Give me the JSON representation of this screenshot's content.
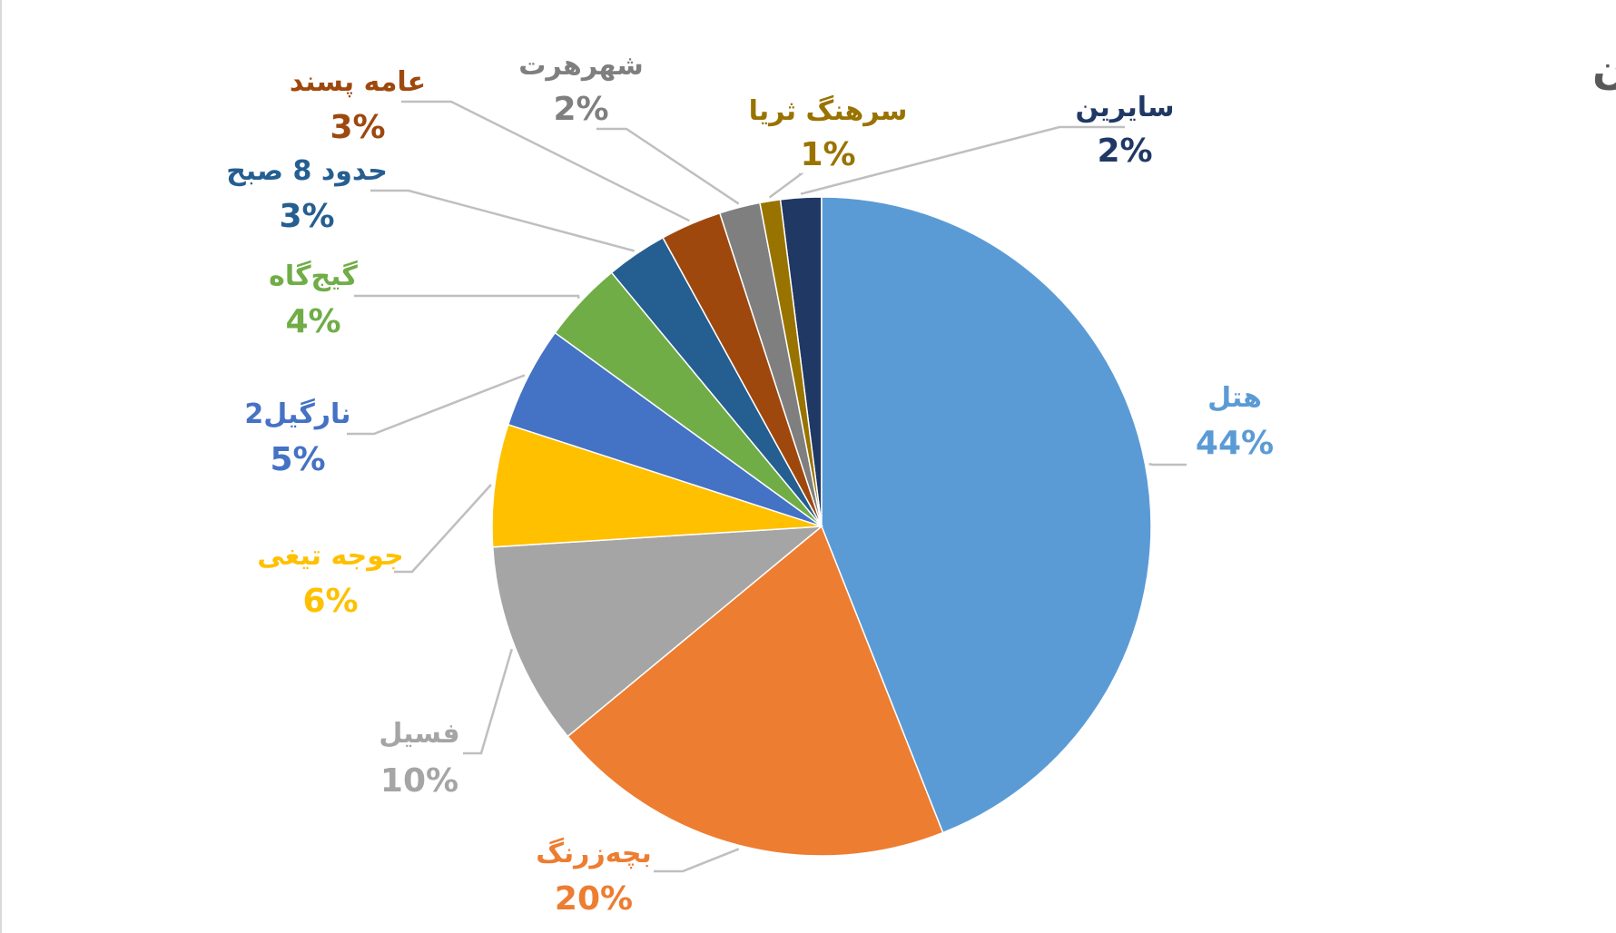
{
  "chart_data": {
    "type": "pie",
    "title": "سهم مخاطبان",
    "slices": [
      {
        "label": "سایرین",
        "value": 2,
        "value_label": "2%",
        "color": "#203864"
      },
      {
        "label": "هتل",
        "value": 44,
        "value_label": "44%",
        "color": "#5b9bd5"
      },
      {
        "label": "بچه‌زرنگ",
        "value": 20,
        "value_label": "20%",
        "color": "#ed7d31"
      },
      {
        "label": "فسیل",
        "value": 10,
        "value_label": "10%",
        "color": "#a5a5a5"
      },
      {
        "label": "جوجه تیغی",
        "value": 6,
        "value_label": "6%",
        "color": "#ffc000"
      },
      {
        "label": "نارگیل2",
        "value": 5,
        "value_label": "5%",
        "color": "#4472c4"
      },
      {
        "label": "گیج‌گاه",
        "value": 4,
        "value_label": "4%",
        "color": "#70ad47"
      },
      {
        "label": "حدود 8 صبح",
        "value": 3,
        "value_label": "3%",
        "color": "#255e91"
      },
      {
        "label": "عامه پسند",
        "value": 3,
        "value_label": "3%",
        "color": "#9e480e"
      },
      {
        "label": "شهرهرت",
        "value": 2,
        "value_label": "2%",
        "color": "#7f7f7f"
      },
      {
        "label": "سرهنگ ثریا",
        "value": 1,
        "value_label": "1%",
        "color": "#997300"
      }
    ],
    "label_colors": {
      "سایرین": "#203864",
      "هتل": "#5b9bd5",
      "بچه‌زرنگ": "#ed7d31",
      "فسیل": "#a5a5a5",
      "جوجه تیغی": "#ffc000",
      "نارگیل2": "#4472c4",
      "گیج‌گاه": "#70ad47",
      "حدود 8 صبح": "#255e91",
      "عامه پسند": "#9e480e",
      "شهرهرت": "#7f7f7f",
      "سرهنگ ثریا": "#997300"
    },
    "legend": "none"
  }
}
